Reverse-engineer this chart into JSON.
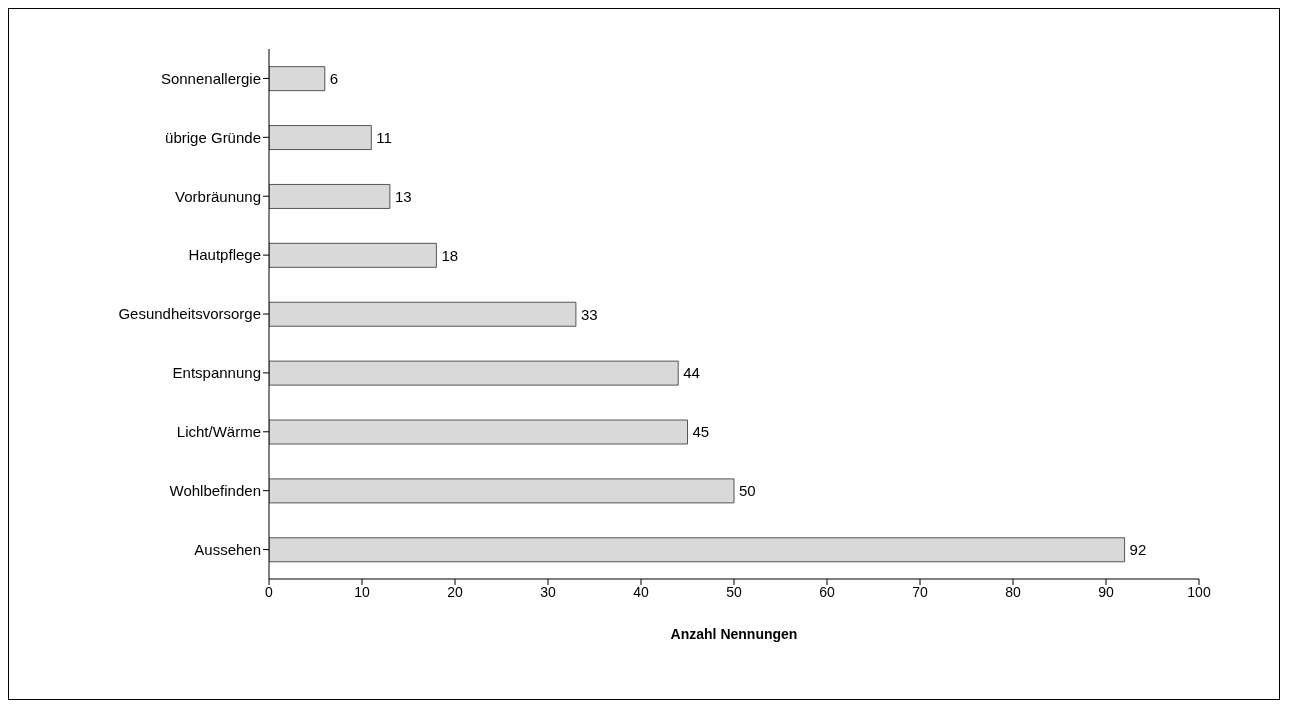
{
  "chart_data": {
    "type": "bar",
    "orientation": "horizontal",
    "xlabel": "Anzahl Nennungen",
    "categories": [
      "Sonnenallergie",
      "übrige Gründe",
      "Vorbräunung",
      "Hautpflege",
      "Gesundheitsvorsorge",
      "Entspannung",
      "Licht/Wärme",
      "Wohlbefinden",
      "Aussehen"
    ],
    "values": [
      6,
      11,
      13,
      18,
      33,
      44,
      45,
      50,
      92
    ],
    "color": "#d9d9d9",
    "xlim": [
      0,
      100
    ],
    "xticks": [
      0,
      10,
      20,
      30,
      40,
      50,
      60,
      70,
      80,
      90,
      100
    ],
    "data_labels": true,
    "grid": false,
    "legend": false
  }
}
